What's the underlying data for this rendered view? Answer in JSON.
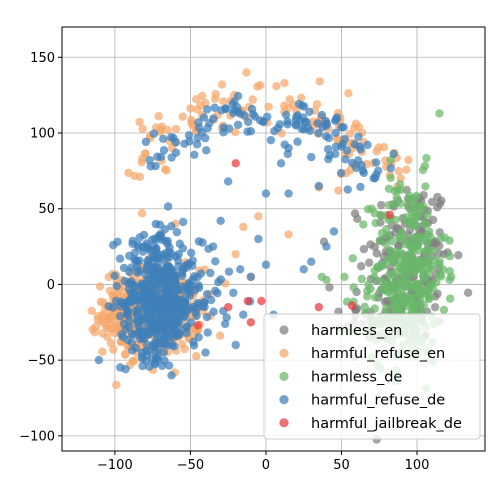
{
  "chart_data": {
    "type": "scatter",
    "title": "",
    "xlabel": "",
    "ylabel": "",
    "xlim": [
      -135,
      145
    ],
    "ylim": [
      -110,
      170
    ],
    "xticks": [
      -100,
      -50,
      0,
      50,
      100
    ],
    "yticks": [
      -100,
      -50,
      0,
      50,
      100,
      150
    ],
    "xtick_labels": [
      "−100",
      "−50",
      "0",
      "50",
      "100"
    ],
    "ytick_labels": [
      "−100",
      "−50",
      "0",
      "50",
      "100",
      "150"
    ],
    "grid": true,
    "legend_position": "lower-right",
    "series": [
      {
        "name": "harmless_en",
        "color": "#7f7f7f",
        "clusters": [
          {
            "center": [
              95,
              15
            ],
            "spread": [
              14,
              28
            ],
            "n": 190
          },
          {
            "center": [
              80,
              -20
            ],
            "spread": [
              14,
              12
            ],
            "n": 40
          }
        ],
        "points": [
          [
            42,
            -2
          ],
          [
            48,
            -18
          ],
          [
            60,
            -5
          ],
          [
            63,
            12
          ],
          [
            110,
            25
          ],
          [
            118,
            20
          ],
          [
            112,
            -15
          ]
        ]
      },
      {
        "name": "harmful_refuse_en",
        "color": "#f5a76b",
        "clusters": [
          {
            "center": [
              -75,
              -18
            ],
            "spread": [
              16,
              14
            ],
            "n": 360
          },
          {
            "center": [
              -95,
              -20
            ],
            "spread": [
              8,
              12
            ],
            "n": 40
          }
        ],
        "arc": {
          "center": [
            -5,
            20
          ],
          "radius": 100,
          "start_deg": 25,
          "end_deg": 150,
          "n": 120,
          "jitter": 7
        },
        "points": [
          [
            -20,
            20
          ],
          [
            -15,
            38
          ],
          [
            -10,
            5
          ],
          [
            -5,
            45
          ],
          [
            15,
            33
          ],
          [
            35,
            64
          ],
          [
            48,
            62
          ],
          [
            50,
            73
          ],
          [
            52,
            95
          ],
          [
            55,
            86
          ],
          [
            -60,
            40
          ],
          [
            -82,
            47
          ]
        ]
      },
      {
        "name": "harmless_de",
        "color": "#6ab86a",
        "clusters": [
          {
            "center": [
              95,
              10
            ],
            "spread": [
              12,
              30
            ],
            "n": 260
          },
          {
            "center": [
              82,
              -25
            ],
            "spread": [
              12,
              12
            ],
            "n": 60
          }
        ],
        "points": [
          [
            37,
            5
          ],
          [
            40,
            3
          ],
          [
            52,
            5
          ],
          [
            58,
            -2
          ],
          [
            70,
            50
          ],
          [
            72,
            47
          ],
          [
            108,
            35
          ],
          [
            115,
            15
          ]
        ]
      },
      {
        "name": "harmful_refuse_de",
        "color": "#3f7fba",
        "clusters": [
          {
            "center": [
              -72,
              -12
            ],
            "spread": [
              12,
              18
            ],
            "n": 420
          },
          {
            "center": [
              -72,
              25
            ],
            "spread": [
              12,
              10
            ],
            "n": 45
          },
          {
            "center": [
              -45,
              -10
            ],
            "spread": [
              12,
              14
            ],
            "n": 60
          }
        ],
        "arc": {
          "center": [
            -5,
            15
          ],
          "radius": 95,
          "start_deg": 35,
          "end_deg": 140,
          "n": 130,
          "jitter": 8
        },
        "points": [
          [
            -35,
            25
          ],
          [
            -30,
            42
          ],
          [
            -25,
            68
          ],
          [
            -17,
            10
          ],
          [
            -20,
            -40
          ],
          [
            -15,
            -20
          ],
          [
            -10,
            5
          ],
          [
            -5,
            30
          ],
          [
            0,
            60
          ],
          [
            0,
            13
          ],
          [
            5,
            -20
          ],
          [
            10,
            80
          ],
          [
            15,
            60
          ],
          [
            15,
            90
          ],
          [
            20,
            105
          ],
          [
            25,
            10
          ],
          [
            30,
            15
          ],
          [
            35,
            65
          ],
          [
            40,
            25
          ],
          [
            45,
            35
          ],
          [
            -40,
            -45
          ],
          [
            -48,
            -38
          ]
        ]
      },
      {
        "name": "harmful_jailbreak_de",
        "color": "#e8393c",
        "clusters": [],
        "points": [
          [
            -45,
            -27
          ],
          [
            -25,
            -15
          ],
          [
            -12,
            -11
          ],
          [
            -3,
            -11
          ],
          [
            -20,
            80
          ],
          [
            -10,
            -25
          ],
          [
            35,
            -15
          ],
          [
            57,
            -14
          ],
          [
            82,
            46
          ]
        ]
      }
    ]
  }
}
